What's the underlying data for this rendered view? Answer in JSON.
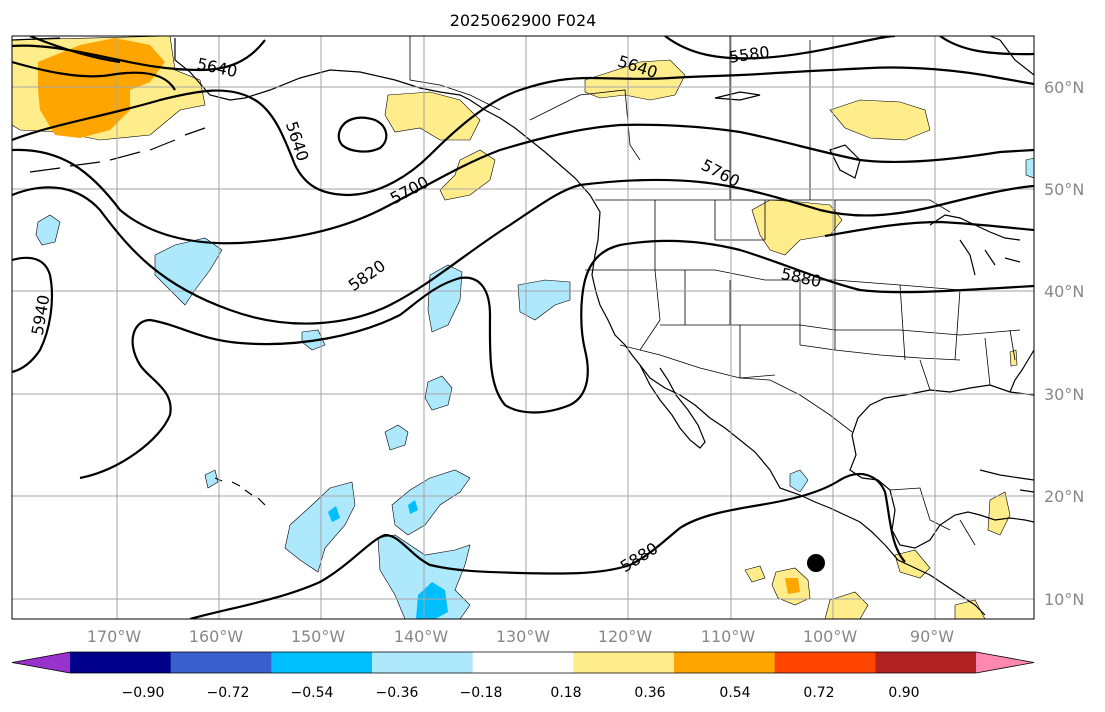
{
  "title": "2025062900 F024",
  "lon_labels": [
    "170°W",
    "160°W",
    "150°W",
    "140°W",
    "130°W",
    "120°W",
    "110°W",
    "100°W",
    "90°W"
  ],
  "lat_labels": [
    "60°N",
    "50°N",
    "40°N",
    "30°N",
    "20°N",
    "10°N"
  ],
  "contour_labels": [
    "5640",
    "5580",
    "5640",
    "5640",
    "5700",
    "5760",
    "5820",
    "5880",
    "5940",
    "5880"
  ],
  "colorbar": {
    "tick_labels": [
      "−0.90",
      "−0.72",
      "−0.54",
      "−0.36",
      "−0.18",
      "0.18",
      "0.36",
      "0.54",
      "0.72",
      "0.90"
    ],
    "colors": [
      "#9932cc",
      "#00008b",
      "#3a5fcd",
      "#00bfff",
      "#ade8fc",
      "#ffffff",
      "#ffec8b",
      "#ffa500",
      "#ff4500",
      "#b22222",
      "#ff88b0"
    ]
  },
  "colors": {
    "light_blue": "#ade8fc",
    "deep_sky_blue": "#00bfff",
    "light_yellow": "#ffec8b",
    "orange": "#ffa500",
    "grid": "#a6a6a6",
    "axis_label": "#888888"
  },
  "marker": {
    "name": "black-dot",
    "lon": -100,
    "lat": 13
  }
}
